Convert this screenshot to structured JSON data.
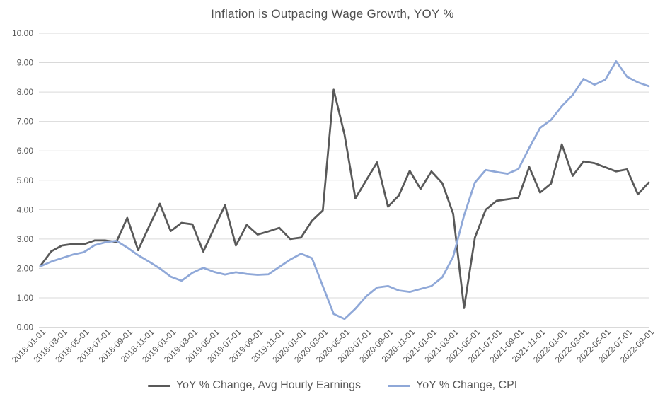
{
  "chart_data": {
    "type": "line",
    "title": "Inflation is Outpacing Wage Growth, YOY %",
    "xlabel": "",
    "ylabel": "",
    "ylim": [
      0,
      10
    ],
    "grid": "horizontal",
    "legend_position": "bottom",
    "gridline_color": "#D9D9D9",
    "axis_label_color": "#595959",
    "y_ticks": [
      "10.00",
      "9.00",
      "8.00",
      "7.00",
      "6.00",
      "5.00",
      "4.00",
      "3.00",
      "2.00",
      "1.00",
      "0.00"
    ],
    "x": [
      "2018-01-01",
      "2018-02-01",
      "2018-03-01",
      "2018-04-01",
      "2018-05-01",
      "2018-06-01",
      "2018-07-01",
      "2018-08-01",
      "2018-09-01",
      "2018-10-01",
      "2018-11-01",
      "2018-12-01",
      "2019-01-01",
      "2019-02-01",
      "2019-03-01",
      "2019-04-01",
      "2019-05-01",
      "2019-06-01",
      "2019-07-01",
      "2019-08-01",
      "2019-09-01",
      "2019-10-01",
      "2019-11-01",
      "2019-12-01",
      "2020-01-01",
      "2020-02-01",
      "2020-03-01",
      "2020-04-01",
      "2020-05-01",
      "2020-06-01",
      "2020-07-01",
      "2020-08-01",
      "2020-09-01",
      "2020-10-01",
      "2020-11-01",
      "2020-12-01",
      "2021-01-01",
      "2021-02-01",
      "2021-03-01",
      "2021-04-01",
      "2021-05-01",
      "2021-06-01",
      "2021-07-01",
      "2021-08-01",
      "2021-09-01",
      "2021-10-01",
      "2021-11-01",
      "2021-12-01",
      "2022-01-01",
      "2022-02-01",
      "2022-03-01",
      "2022-04-01",
      "2022-05-01",
      "2022-06-01",
      "2022-07-01",
      "2022-08-01",
      "2022-09-01"
    ],
    "x_tick_every": 2,
    "series": [
      {
        "id": "earnings",
        "name": "YoY % Change, Avg Hourly Earnings",
        "color": "#595959",
        "values": [
          2.08,
          2.58,
          2.78,
          2.83,
          2.82,
          2.95,
          2.95,
          2.9,
          3.72,
          2.62,
          3.42,
          4.2,
          3.27,
          3.55,
          3.5,
          2.57,
          3.37,
          4.15,
          2.78,
          3.48,
          3.15,
          3.26,
          3.38,
          3.0,
          3.05,
          3.62,
          3.97,
          8.08,
          6.55,
          4.38,
          5.0,
          5.61,
          4.1,
          4.48,
          5.32,
          4.7,
          5.3,
          4.9,
          3.86,
          0.65,
          3.05,
          4.0,
          4.3,
          4.35,
          4.4,
          5.45,
          4.58,
          4.88,
          6.22,
          5.15,
          5.64,
          5.58,
          5.44,
          5.3,
          5.37,
          4.52,
          4.92
        ]
      },
      {
        "id": "cpi",
        "name": "YoY % Change, CPI",
        "color": "#8FA8D8",
        "values": [
          2.07,
          2.23,
          2.35,
          2.47,
          2.55,
          2.79,
          2.89,
          2.94,
          2.71,
          2.45,
          2.23,
          2.0,
          1.72,
          1.58,
          1.85,
          2.02,
          1.88,
          1.79,
          1.87,
          1.81,
          1.78,
          1.8,
          2.05,
          2.3,
          2.5,
          2.35,
          1.4,
          0.45,
          0.28,
          0.63,
          1.05,
          1.35,
          1.4,
          1.25,
          1.2,
          1.3,
          1.4,
          1.7,
          2.4,
          3.8,
          4.92,
          5.35,
          5.28,
          5.22,
          5.38,
          6.1,
          6.78,
          7.05,
          7.52,
          7.9,
          8.45,
          8.25,
          8.42,
          9.05,
          8.52,
          8.33,
          8.2
        ]
      }
    ]
  }
}
